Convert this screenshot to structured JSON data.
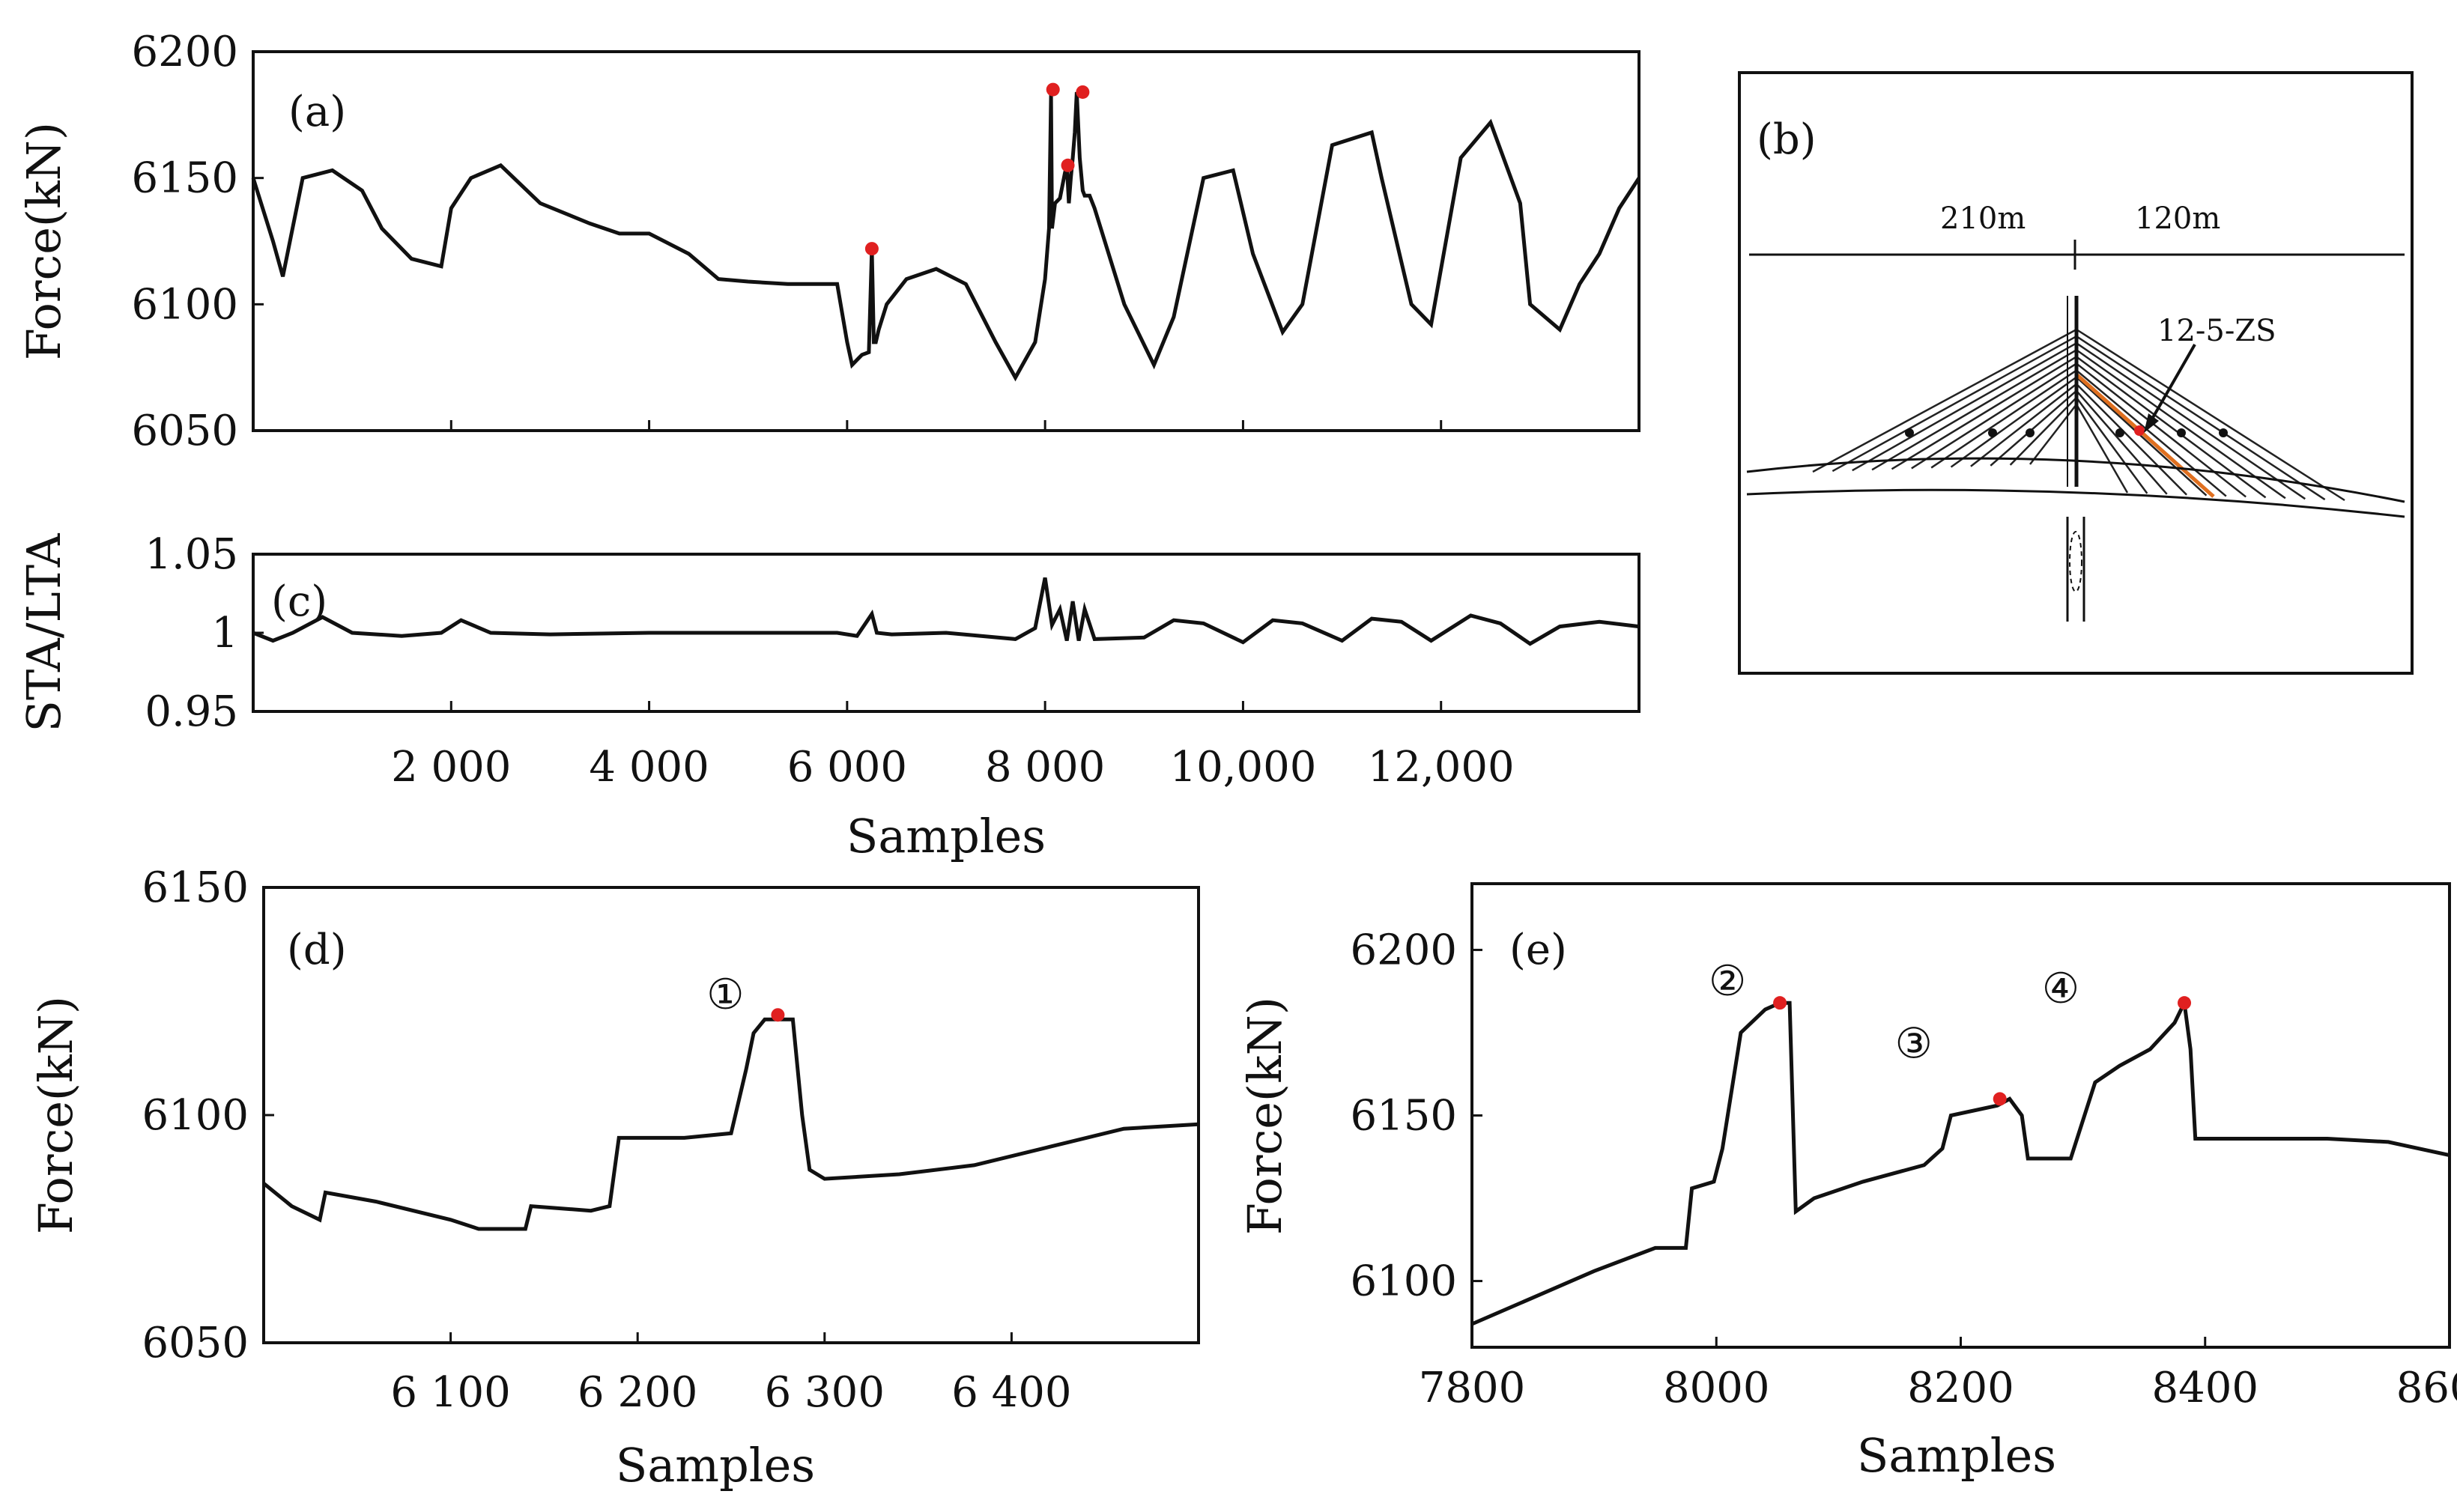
{
  "chart_data": [
    {
      "panel": "(a)",
      "type": "line",
      "ylabel": "Force(kN)",
      "xlim": [
        0,
        14000
      ],
      "ylim": [
        6050,
        6200
      ],
      "yticks": [
        "6050",
        "6100",
        "6150",
        "6200"
      ],
      "x": [
        0,
        200,
        300,
        500,
        800,
        1100,
        1300,
        1600,
        1900,
        2000,
        2200,
        2500,
        2900,
        3400,
        3700,
        4000,
        4400,
        4700,
        5000,
        5400,
        5900,
        6000,
        6050,
        6100,
        6150,
        6220,
        6250,
        6270,
        6290,
        6320,
        6400,
        6600,
        6900,
        7200,
        7500,
        7700,
        7900,
        8000,
        8040,
        8060,
        8070,
        8100,
        8150,
        8200,
        8220,
        8240,
        8260,
        8280,
        8300,
        8320,
        8350,
        8380,
        8400,
        8450,
        8500,
        8800,
        9100,
        9300,
        9600,
        9900,
        10100,
        10400,
        10600,
        10900,
        11300,
        11400,
        11700,
        11900,
        12200,
        12500,
        12800,
        12900,
        13200,
        13400,
        13600,
        13800,
        14000
      ],
      "series": [
        {
          "values": [
            6150,
            6125,
            6111,
            6150,
            6153,
            6145,
            6130,
            6118,
            6115,
            6138,
            6150,
            6155,
            6140,
            6132,
            6128,
            6128,
            6120,
            6110,
            6109,
            6108,
            6108,
            6085,
            6076,
            6078,
            6080,
            6081,
            6122,
            6085,
            6085,
            6090,
            6100,
            6110,
            6114,
            6108,
            6085,
            6071,
            6085,
            6110,
            6130,
            6183,
            6130,
            6140,
            6142,
            6152,
            6155,
            6140,
            6150,
            6158,
            6168,
            6184,
            6158,
            6145,
            6143,
            6143,
            6138,
            6100,
            6076,
            6095,
            6150,
            6153,
            6120,
            6089,
            6100,
            6163,
            6168,
            6150,
            6100,
            6092,
            6158,
            6172,
            6140,
            6100,
            6090,
            6108,
            6120,
            6138,
            6150
          ]
        }
      ],
      "markers": [
        {
          "x": 6250,
          "y": 6122
        },
        {
          "x": 8080,
          "y": 6185
        },
        {
          "x": 8230,
          "y": 6155
        },
        {
          "x": 8380,
          "y": 6184
        }
      ]
    },
    {
      "panel": "(b)",
      "type": "diagram",
      "span_left": "210m",
      "span_right": "120m",
      "cable_label": "12-5-ZS"
    },
    {
      "panel": "(c)",
      "type": "line",
      "xlabel": "Samples",
      "ylabel": "STA/LTA",
      "xlim": [
        0,
        14000
      ],
      "ylim": [
        0.95,
        1.05
      ],
      "yticks": [
        "0.95",
        "1",
        "1.05"
      ],
      "xticks": [
        2000,
        4000,
        6000,
        8000,
        10000,
        12000
      ],
      "xticklabels": [
        "2 000",
        "4 000",
        "6 000",
        "8 000",
        "10,000",
        "12,000"
      ],
      "x": [
        0,
        200,
        400,
        700,
        1000,
        1500,
        1900,
        2100,
        2400,
        3000,
        4000,
        5000,
        5900,
        6100,
        6250,
        6300,
        6450,
        7000,
        7700,
        7900,
        8000,
        8070,
        8150,
        8220,
        8280,
        8340,
        8400,
        8500,
        9000,
        9300,
        9600,
        10000,
        10300,
        10600,
        11000,
        11300,
        11600,
        11900,
        12300,
        12600,
        12900,
        13200,
        13600,
        14000
      ],
      "series": [
        {
          "values": [
            1.0,
            0.995,
            1.0,
            1.01,
            1.0,
            0.998,
            1.0,
            1.008,
            1.0,
            0.999,
            1.0,
            1.0,
            1.0,
            0.998,
            1.012,
            1.0,
            0.999,
            1.0,
            0.996,
            1.003,
            1.035,
            1.005,
            1.015,
            0.995,
            1.02,
            0.995,
            1.015,
            0.996,
            0.997,
            1.008,
            1.006,
            0.994,
            1.008,
            1.006,
            0.995,
            1.009,
            1.007,
            0.995,
            1.011,
            1.006,
            0.993,
            1.004,
            1.007,
            1.004
          ]
        }
      ]
    },
    {
      "panel": "(d)",
      "type": "line",
      "xlabel": "Samples",
      "ylabel": "Force(kN)",
      "xlim": [
        6000,
        6500
      ],
      "ylim": [
        6050,
        6150
      ],
      "yticks": [
        "6050",
        "6100",
        "6150"
      ],
      "xticks": [
        6100,
        6200,
        6300,
        6400
      ],
      "xticklabels": [
        "6 100",
        "6 200",
        "6 300",
        "6 400"
      ],
      "x": [
        6000,
        6015,
        6030,
        6033,
        6060,
        6100,
        6115,
        6140,
        6143,
        6175,
        6185,
        6190,
        6225,
        6250,
        6258,
        6262,
        6268,
        6275,
        6283,
        6288,
        6292,
        6300,
        6340,
        6380,
        6420,
        6460,
        6500
      ],
      "series": [
        {
          "values": [
            6085,
            6080,
            6077,
            6083,
            6081,
            6077,
            6075,
            6075,
            6080,
            6079,
            6080,
            6095,
            6095,
            6096,
            6110,
            6118,
            6121,
            6121,
            6121,
            6100,
            6088,
            6086,
            6087,
            6089,
            6093,
            6097,
            6098
          ]
        }
      ],
      "markers": [
        {
          "x": 6275,
          "y": 6122,
          "label": "①"
        }
      ]
    },
    {
      "panel": "(e)",
      "type": "line",
      "xlabel": "Samples",
      "ylabel": "Force(kN)",
      "xlim": [
        7800,
        8600
      ],
      "ylim": [
        6080,
        6220
      ],
      "yticks": [
        "6100",
        "6150",
        "6200"
      ],
      "xticks": [
        7800,
        8000,
        8200,
        8400,
        8600
      ],
      "xticklabels": [
        "7800",
        "8000",
        "8200",
        "8400",
        "8600"
      ],
      "x": [
        7800,
        7850,
        7900,
        7950,
        7975,
        7980,
        7998,
        8005,
        8020,
        8040,
        8052,
        8060,
        8065,
        8080,
        8120,
        8170,
        8185,
        8192,
        8230,
        8240,
        8250,
        8255,
        8280,
        8290,
        8310,
        8330,
        8355,
        8375,
        8383,
        8388,
        8392,
        8450,
        8500,
        8550,
        8600
      ],
      "series": [
        {
          "values": [
            6087,
            6095,
            6103,
            6110,
            6110,
            6128,
            6130,
            6140,
            6175,
            6182,
            6184,
            6184,
            6121,
            6125,
            6130,
            6135,
            6140,
            6150,
            6153,
            6155,
            6150,
            6137,
            6137,
            6137,
            6160,
            6165,
            6170,
            6178,
            6184,
            6170,
            6143,
            6143,
            6143,
            6142,
            6138
          ]
        }
      ],
      "markers": [
        {
          "x": 8052,
          "y": 6184,
          "label": "②"
        },
        {
          "x": 8232,
          "y": 6155,
          "label": "③"
        },
        {
          "x": 8383,
          "y": 6184,
          "label": "④"
        }
      ]
    }
  ]
}
